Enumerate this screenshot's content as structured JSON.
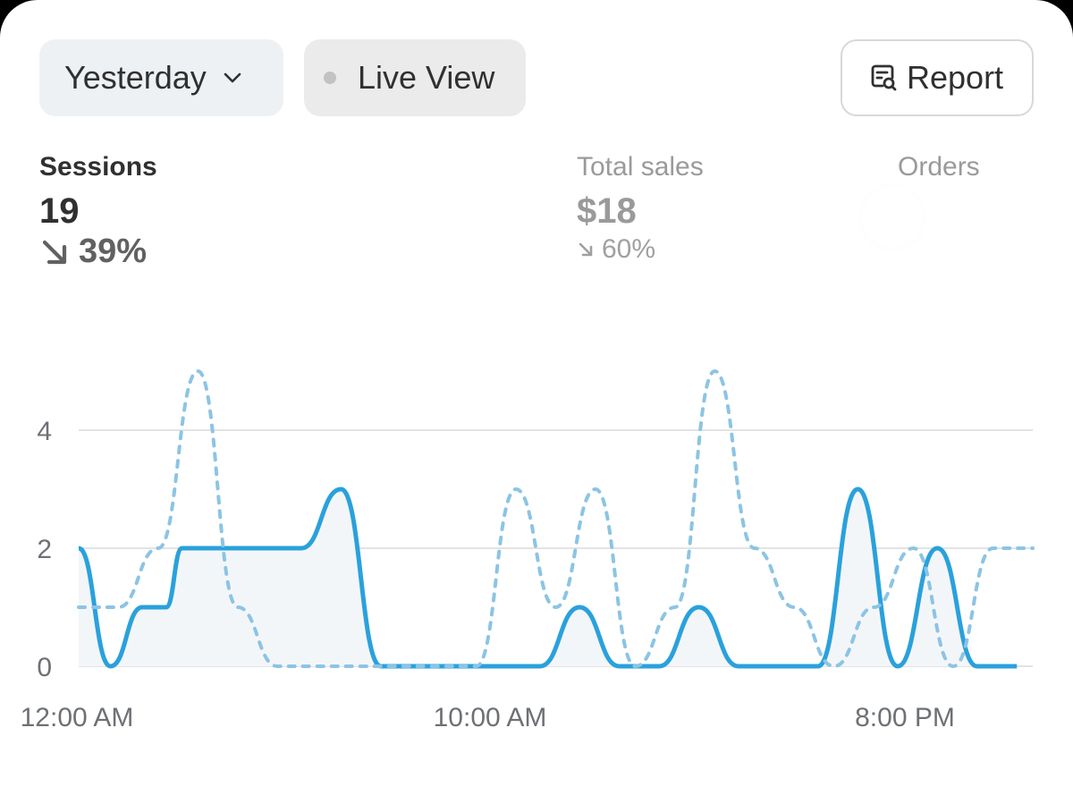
{
  "toolbar": {
    "date_label": "Yesterday",
    "live_label": "Live View",
    "report_label": "Report"
  },
  "metrics": {
    "sessions": {
      "label": "Sessions",
      "value": "19",
      "change": "39%"
    },
    "total_sales": {
      "label": "Total sales",
      "value": "$18",
      "change": "60%"
    },
    "orders": {
      "label": "Orders"
    }
  },
  "colors": {
    "current_line": "#2aa1dc",
    "comparison_line": "#8cc4e4",
    "gridline": "#e3e3e3",
    "area_fill": "#f3f6f9"
  },
  "chart_data": {
    "type": "line",
    "x_ticks": [
      "12:00 AM",
      "10:00 AM",
      "8:00 PM"
    ],
    "y_ticks": [
      0,
      2,
      4
    ],
    "ylim": [
      0,
      5
    ],
    "grid": true,
    "series": [
      {
        "style": "solid",
        "x": [
          0,
          0.8,
          1.6,
          2.2,
          2.6,
          3.6,
          4.6,
          5.6,
          6.6,
          7.6,
          8.6,
          9.6,
          10.6,
          11.6,
          12.6,
          13.6,
          14.6,
          15.6,
          16.6,
          17.6,
          18.6,
          19.6,
          20.6,
          21.6,
          22.6,
          23.6
        ],
        "values": [
          2,
          0,
          1,
          1,
          2,
          2,
          2,
          2,
          3,
          0,
          0,
          0,
          0,
          0,
          1,
          0,
          0,
          1,
          0,
          0,
          0,
          3,
          0,
          2,
          0,
          0
        ]
      },
      {
        "style": "dotted",
        "x": [
          0,
          1,
          2,
          3,
          4,
          5,
          6,
          7,
          8,
          9,
          10,
          11,
          12,
          13,
          14,
          15,
          16,
          17,
          18,
          19,
          20,
          21,
          22,
          23,
          24
        ],
        "values": [
          1,
          1,
          2,
          5,
          1,
          0,
          0,
          0,
          0,
          0,
          0,
          3,
          1,
          3,
          0,
          1,
          5,
          2,
          1,
          0,
          1,
          2,
          0,
          2,
          2
        ]
      }
    ]
  }
}
